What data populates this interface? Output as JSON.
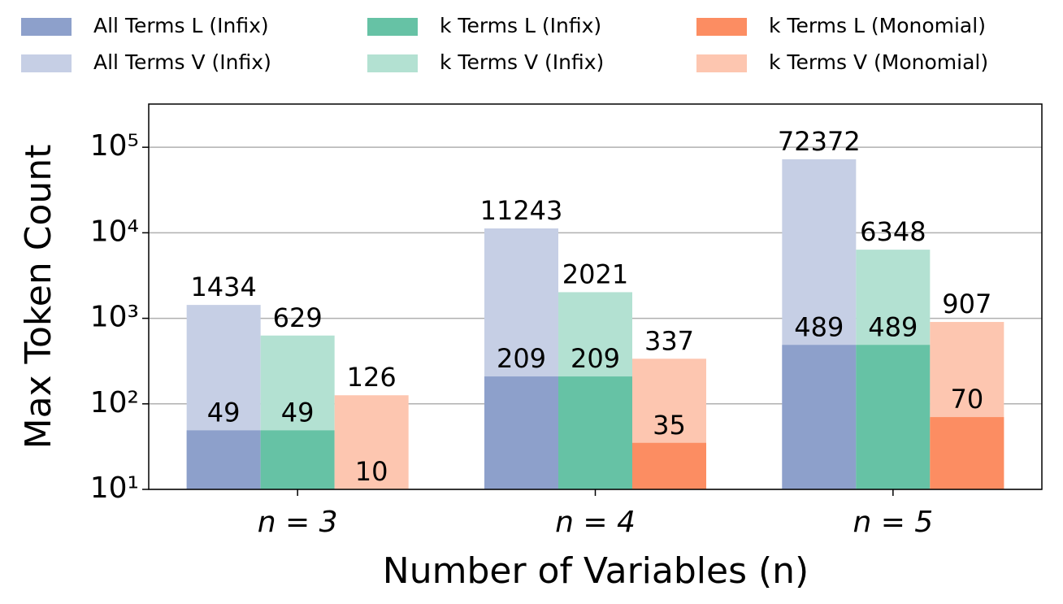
{
  "chart_data": {
    "type": "bar",
    "xlabel": "Number of Variables (n)",
    "ylabel": "Max Token Count",
    "categories": [
      "n = 3",
      "n = 4",
      "n = 5"
    ],
    "series": [
      {
        "name": "All Terms L (Infix)",
        "color": "#8da0cb",
        "values": [
          49,
          209,
          489
        ]
      },
      {
        "name": "All Terms V (Infix)",
        "color": "#c6cfe5",
        "values": [
          1434,
          11243,
          72372
        ]
      },
      {
        "name": "k Terms L (Infix)",
        "color": "#66c2a5",
        "values": [
          49,
          209,
          489
        ]
      },
      {
        "name": "k Terms V (Infix)",
        "color": "#b3e1d2",
        "values": [
          629,
          2021,
          6348
        ]
      },
      {
        "name": "k Terms L (Monomial)",
        "color": "#fc8d62",
        "values": [
          10,
          35,
          70
        ]
      },
      {
        "name": "k Terms V (Monomial)",
        "color": "#fdc6b0",
        "values": [
          126,
          337,
          907
        ]
      }
    ],
    "log_scale": true,
    "ylim": [
      10,
      320000
    ],
    "yticks": [
      {
        "value": 10,
        "label": "10¹"
      },
      {
        "value": 100,
        "label": "10²"
      },
      {
        "value": 1000,
        "label": "10³"
      },
      {
        "value": 10000,
        "label": "10⁴"
      },
      {
        "value": 100000,
        "label": "10⁵"
      }
    ],
    "grid": true,
    "legend": "top"
  }
}
